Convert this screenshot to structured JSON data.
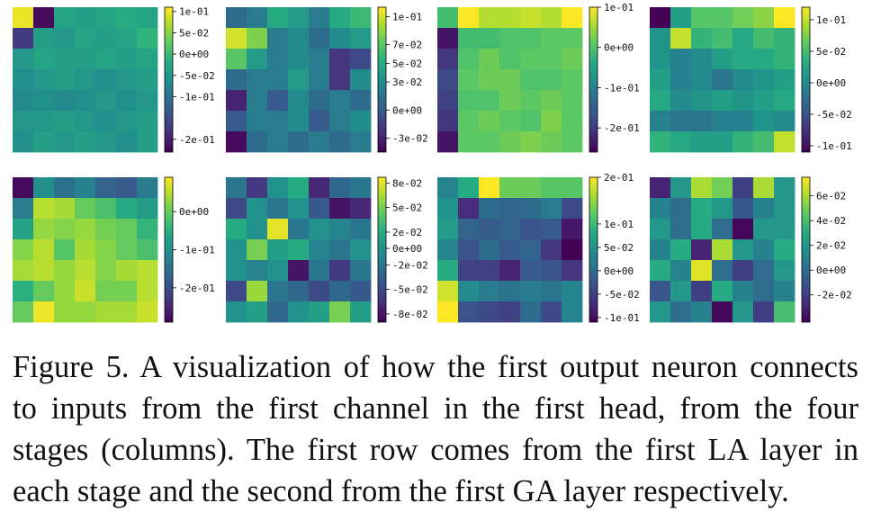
{
  "figure": {
    "caption_line_1": "Figure 5. A visualization of how the first output neuron connects",
    "caption_line_2": "to inputs from the first channel in the first head, from the four",
    "caption_line_3": "stages (columns). The first row comes from the first LA layer in",
    "caption_line_4": "each stage and the second from the first GA layer respectively.",
    "colormap": "viridis"
  },
  "chart_data": [
    {
      "type": "heatmap",
      "row": 1,
      "column": 1,
      "vrange": [
        -0.23,
        0.11
      ],
      "colorbar_ticks": [
        {
          "v": 0.1,
          "label": "1e-01"
        },
        {
          "v": 0.05,
          "label": "5e-02"
        },
        {
          "v": 0.0,
          "label": "0e+00"
        },
        {
          "v": -0.05,
          "label": "-5e-02"
        },
        {
          "v": -0.1,
          "label": "-1e-01"
        },
        {
          "v": -0.2,
          "label": "-2e-01"
        }
      ],
      "values": [
        [
          0.1,
          -0.22,
          -0.03,
          -0.04,
          -0.03,
          -0.02,
          -0.03
        ],
        [
          -0.17,
          -0.04,
          -0.05,
          -0.03,
          -0.04,
          -0.03,
          -0.01
        ],
        [
          -0.05,
          -0.03,
          -0.04,
          -0.04,
          -0.03,
          -0.04,
          -0.03
        ],
        [
          -0.06,
          -0.05,
          -0.04,
          -0.05,
          -0.06,
          -0.05,
          -0.04
        ],
        [
          -0.07,
          -0.06,
          -0.07,
          -0.06,
          -0.05,
          -0.06,
          -0.05
        ],
        [
          -0.05,
          -0.05,
          -0.04,
          -0.05,
          -0.06,
          -0.05,
          -0.04
        ],
        [
          -0.06,
          -0.04,
          -0.05,
          -0.04,
          -0.05,
          -0.06,
          -0.04
        ]
      ]
    },
    {
      "type": "heatmap",
      "row": 1,
      "column": 2,
      "vrange": [
        -0.045,
        0.11
      ],
      "colorbar_ticks": [
        {
          "v": 0.1,
          "label": "1e-01"
        },
        {
          "v": 0.07,
          "label": "7e-02"
        },
        {
          "v": 0.05,
          "label": "5e-02"
        },
        {
          "v": 0.03,
          "label": "3e-02"
        },
        {
          "v": 0.0,
          "label": "0e+00"
        },
        {
          "v": -0.03,
          "label": "-3e-02"
        }
      ],
      "values": [
        [
          0.01,
          0.02,
          0.05,
          0.04,
          0.02,
          0.05,
          0.06
        ],
        [
          0.1,
          0.08,
          0.02,
          0.03,
          0.01,
          0.03,
          0.04
        ],
        [
          0.07,
          0.04,
          0.02,
          0.03,
          0.02,
          -0.02,
          -0.01
        ],
        [
          0.01,
          0.02,
          0.02,
          0.04,
          0.02,
          -0.02,
          0.03
        ],
        [
          -0.03,
          0.02,
          0.0,
          0.03,
          0.01,
          0.02,
          0.01
        ],
        [
          0.0,
          0.02,
          0.02,
          0.03,
          0.0,
          0.02,
          0.03
        ],
        [
          -0.04,
          0.01,
          0.02,
          0.01,
          0.02,
          0.01,
          0.02
        ]
      ]
    },
    {
      "type": "heatmap",
      "row": 1,
      "column": 3,
      "vrange": [
        -0.26,
        0.1
      ],
      "colorbar_ticks": [
        {
          "v": 0.1,
          "label": "1e-01"
        },
        {
          "v": 0.0,
          "label": "0e+00"
        },
        {
          "v": -0.1,
          "label": "-1e-01"
        },
        {
          "v": -0.2,
          "label": "-2e-01"
        }
      ],
      "values": [
        [
          -0.01,
          0.1,
          0.06,
          0.06,
          0.07,
          0.06,
          0.1
        ],
        [
          -0.24,
          -0.01,
          -0.01,
          0.0,
          0.0,
          0.01,
          0.01
        ],
        [
          -0.2,
          0.0,
          0.02,
          0.0,
          0.01,
          0.01,
          0.02
        ],
        [
          -0.18,
          0.01,
          0.02,
          0.02,
          0.0,
          0.0,
          0.01
        ],
        [
          -0.19,
          0.0,
          0.0,
          0.02,
          0.01,
          0.02,
          0.01
        ],
        [
          -0.2,
          0.01,
          0.02,
          0.01,
          0.0,
          0.03,
          0.01
        ],
        [
          -0.24,
          0.01,
          0.01,
          0.02,
          0.03,
          0.02,
          0.01
        ]
      ]
    },
    {
      "type": "heatmap",
      "row": 1,
      "column": 4,
      "vrange": [
        -0.11,
        0.12
      ],
      "colorbar_ticks": [
        {
          "v": 0.1,
          "label": "1e-01"
        },
        {
          "v": 0.05,
          "label": "5e-02"
        },
        {
          "v": 0.0,
          "label": "0e+00"
        },
        {
          "v": -0.05,
          "label": "-5e-02"
        },
        {
          "v": -0.1,
          "label": "-1e-01"
        }
      ],
      "values": [
        [
          -0.11,
          0.02,
          0.06,
          0.06,
          0.07,
          0.08,
          0.12
        ],
        [
          0.01,
          0.1,
          0.04,
          0.05,
          0.03,
          0.05,
          0.04
        ],
        [
          0.01,
          -0.01,
          0.0,
          0.02,
          0.03,
          0.03,
          0.04
        ],
        [
          0.02,
          -0.01,
          0.0,
          -0.02,
          0.0,
          0.01,
          0.02
        ],
        [
          0.03,
          0.0,
          0.01,
          0.02,
          0.01,
          0.02,
          0.03
        ],
        [
          -0.01,
          -0.02,
          -0.02,
          -0.01,
          -0.01,
          0.01,
          0.0
        ],
        [
          0.04,
          0.03,
          0.02,
          0.02,
          0.04,
          0.05,
          0.1
        ]
      ]
    },
    {
      "type": "heatmap",
      "row": 2,
      "column": 1,
      "vrange": [
        -0.29,
        0.09
      ],
      "colorbar_ticks": [
        {
          "v": 0.0,
          "label": "0e+00"
        },
        {
          "v": -0.1,
          "label": "-1e-01"
        },
        {
          "v": -0.2,
          "label": "-2e-01"
        }
      ],
      "values": [
        [
          -0.28,
          -0.1,
          -0.15,
          -0.12,
          -0.17,
          -0.18,
          -0.13
        ],
        [
          -0.13,
          0.05,
          0.04,
          0.0,
          -0.02,
          -0.06,
          -0.08
        ],
        [
          -0.07,
          0.03,
          0.02,
          0.03,
          0.01,
          0.0,
          -0.04
        ],
        [
          0.02,
          0.05,
          -0.01,
          0.04,
          0.02,
          0.0,
          -0.02
        ],
        [
          0.04,
          0.05,
          0.03,
          0.05,
          0.02,
          0.04,
          0.05
        ],
        [
          -0.05,
          0.0,
          0.03,
          0.06,
          0.01,
          0.01,
          0.05
        ],
        [
          0.0,
          0.08,
          0.03,
          0.03,
          0.04,
          0.04,
          0.06
        ]
      ]
    },
    {
      "type": "heatmap",
      "row": 2,
      "column": 2,
      "vrange": [
        -0.09,
        0.087
      ],
      "colorbar_ticks": [
        {
          "v": 0.08,
          "label": "8e-02"
        },
        {
          "v": 0.05,
          "label": "5e-02"
        },
        {
          "v": 0.02,
          "label": "2e-02"
        },
        {
          "v": 0.0,
          "label": "0e+00"
        },
        {
          "v": -0.02,
          "label": "-2e-02"
        },
        {
          "v": -0.05,
          "label": "-5e-02"
        },
        {
          "v": -0.08,
          "label": "-8e-02"
        }
      ],
      "values": [
        [
          -0.02,
          -0.06,
          0.0,
          0.02,
          -0.07,
          -0.03,
          -0.02
        ],
        [
          -0.05,
          0.0,
          -0.02,
          0.0,
          -0.04,
          -0.08,
          -0.07
        ],
        [
          0.02,
          0.0,
          0.08,
          -0.02,
          0.0,
          -0.01,
          -0.02
        ],
        [
          0.0,
          0.05,
          0.01,
          0.02,
          -0.01,
          -0.02,
          0.0
        ],
        [
          0.0,
          -0.01,
          0.0,
          -0.08,
          -0.02,
          -0.06,
          -0.02
        ],
        [
          -0.05,
          0.06,
          -0.02,
          -0.03,
          -0.05,
          -0.03,
          -0.04
        ],
        [
          0.0,
          0.01,
          -0.03,
          0.0,
          0.01,
          0.05,
          0.01
        ]
      ]
    },
    {
      "type": "heatmap",
      "row": 2,
      "column": 3,
      "vrange": [
        -0.11,
        0.2
      ],
      "colorbar_ticks": [
        {
          "v": 0.2,
          "label": "2e-01"
        },
        {
          "v": 0.1,
          "label": "1e-01"
        },
        {
          "v": 0.05,
          "label": "5e-02"
        },
        {
          "v": 0.0,
          "label": "0e+00"
        },
        {
          "v": -0.05,
          "label": "-5e-02"
        },
        {
          "v": -0.1,
          "label": "-1e-01"
        }
      ],
      "values": [
        [
          0.03,
          0.08,
          0.2,
          0.13,
          0.13,
          0.12,
          0.12
        ],
        [
          0.05,
          -0.07,
          0.0,
          -0.01,
          0.0,
          0.02,
          -0.04
        ],
        [
          0.06,
          -0.01,
          -0.02,
          -0.01,
          -0.03,
          -0.02,
          -0.09
        ],
        [
          0.03,
          -0.03,
          0.0,
          -0.02,
          -0.01,
          -0.06,
          -0.11
        ],
        [
          0.08,
          -0.05,
          -0.05,
          -0.08,
          -0.02,
          -0.03,
          -0.06
        ],
        [
          0.18,
          0.04,
          0.02,
          0.01,
          0.02,
          0.01,
          0.03
        ],
        [
          0.2,
          -0.03,
          -0.04,
          -0.05,
          0.0,
          -0.04,
          0.03
        ]
      ]
    },
    {
      "type": "heatmap",
      "row": 2,
      "column": 4,
      "vrange": [
        -0.042,
        0.075
      ],
      "colorbar_ticks": [
        {
          "v": 0.06,
          "label": "6e-02"
        },
        {
          "v": 0.04,
          "label": "4e-02"
        },
        {
          "v": 0.02,
          "label": "2e-02"
        },
        {
          "v": 0.0,
          "label": "0e+00"
        },
        {
          "v": -0.02,
          "label": "-2e-02"
        }
      ],
      "values": [
        [
          -0.03,
          0.02,
          0.06,
          0.05,
          -0.02,
          0.06,
          0.02
        ],
        [
          0.01,
          0.0,
          0.03,
          0.02,
          -0.01,
          0.01,
          0.02
        ],
        [
          0.02,
          0.0,
          0.03,
          0.0,
          -0.04,
          0.02,
          0.02
        ],
        [
          0.01,
          0.03,
          -0.03,
          0.06,
          0.02,
          0.01,
          0.03
        ],
        [
          0.03,
          0.01,
          0.07,
          0.0,
          -0.02,
          0.0,
          0.02
        ],
        [
          -0.01,
          0.02,
          -0.02,
          0.03,
          0.01,
          0.0,
          0.01
        ],
        [
          0.02,
          0.0,
          0.01,
          -0.04,
          0.02,
          -0.02,
          0.04
        ]
      ]
    }
  ]
}
